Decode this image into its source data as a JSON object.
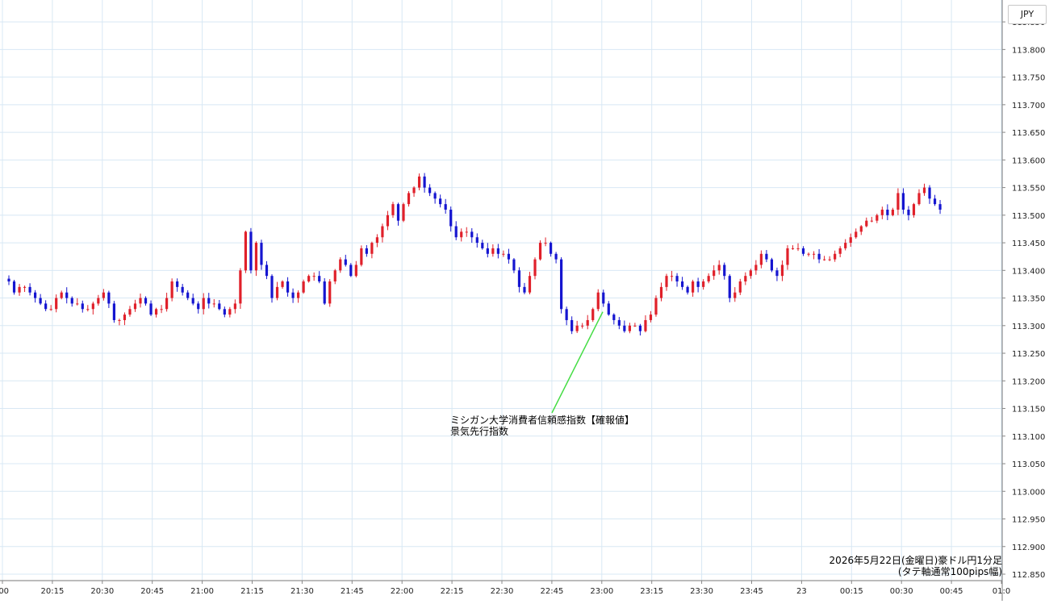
{
  "currency_label": "JPY",
  "annotation": {
    "line1": "ミシガン大学消費者信頼感指数【確報値】",
    "line2": "景気先行指数"
  },
  "caption": {
    "line1": "2026年5月22日(金曜日)豪ドル円1分足",
    "line2": "(タテ軸通常100pips幅)"
  },
  "colors": {
    "up": "#e0202a",
    "down": "#1515d0",
    "grid": "#d8e8f4",
    "annotation_line": "#44dd44"
  },
  "chart_data": {
    "type": "candlestick",
    "title": "",
    "xlabel": "",
    "ylabel": "",
    "ylim": [
      112.85,
      113.87
    ],
    "y_ticks": [
      "113.850",
      "113.800",
      "113.750",
      "113.700",
      "113.650",
      "113.600",
      "113.550",
      "113.500",
      "113.450",
      "113.400",
      "113.350",
      "113.300",
      "113.250",
      "113.200",
      "113.150",
      "113.100",
      "113.050",
      "113.000",
      "112.950",
      "112.900",
      "112.850"
    ],
    "x_ticks": [
      ":00",
      "20:15",
      "20:30",
      "20:45",
      "21:00",
      "21:15",
      "21:30",
      "21:45",
      "22:00",
      "22:15",
      "22:30",
      "22:45",
      "23:00",
      "23:15",
      "23:30",
      "23:45",
      "23",
      "00:15",
      "00:30",
      "00:45",
      "01:0"
    ],
    "grid": true,
    "annotation_time": "23:00",
    "annotation_price": 113.325,
    "closes": [
      113.38,
      113.36,
      113.37,
      113.37,
      113.36,
      113.35,
      113.34,
      113.33,
      113.33,
      113.35,
      113.36,
      113.35,
      113.34,
      113.34,
      113.33,
      113.33,
      113.34,
      113.35,
      113.36,
      113.34,
      113.31,
      113.31,
      113.32,
      113.33,
      113.34,
      113.35,
      113.34,
      113.32,
      113.33,
      113.33,
      113.35,
      113.38,
      113.37,
      113.36,
      113.35,
      113.34,
      113.33,
      113.35,
      113.34,
      113.34,
      113.33,
      113.32,
      113.33,
      113.34,
      113.4,
      113.47,
      113.4,
      113.45,
      113.41,
      113.39,
      113.35,
      113.37,
      113.38,
      113.36,
      113.35,
      113.36,
      113.38,
      113.39,
      113.39,
      113.38,
      113.34,
      113.38,
      113.4,
      113.42,
      113.41,
      113.39,
      113.41,
      113.44,
      113.43,
      113.45,
      113.46,
      113.48,
      113.5,
      113.52,
      113.49,
      113.52,
      113.54,
      113.55,
      113.57,
      113.55,
      113.54,
      113.53,
      113.52,
      113.51,
      113.48,
      113.46,
      113.47,
      113.47,
      113.46,
      113.45,
      113.44,
      113.43,
      113.44,
      113.43,
      113.43,
      113.42,
      113.4,
      113.37,
      113.36,
      113.39,
      113.42,
      113.45,
      113.45,
      113.43,
      113.42,
      113.33,
      113.31,
      113.29,
      113.3,
      113.3,
      113.31,
      113.33,
      113.36,
      113.34,
      113.32,
      113.31,
      113.3,
      113.29,
      113.3,
      113.3,
      113.29,
      113.31,
      113.32,
      113.35,
      113.37,
      113.39,
      113.39,
      113.38,
      113.37,
      113.36,
      113.38,
      113.37,
      113.38,
      113.39,
      113.4,
      113.41,
      113.39,
      113.35,
      113.36,
      113.38,
      113.39,
      113.4,
      113.41,
      113.43,
      113.42,
      113.4,
      113.39,
      113.41,
      113.44,
      113.44,
      113.44,
      113.43,
      113.43,
      113.43,
      113.42,
      113.42,
      113.42,
      113.43,
      113.44,
      113.45,
      113.46,
      113.47,
      113.48,
      113.49,
      113.49,
      113.5,
      113.51,
      113.5,
      113.51,
      113.54,
      113.51,
      113.5,
      113.52,
      113.54,
      113.55,
      113.53,
      113.52,
      113.51
    ]
  }
}
